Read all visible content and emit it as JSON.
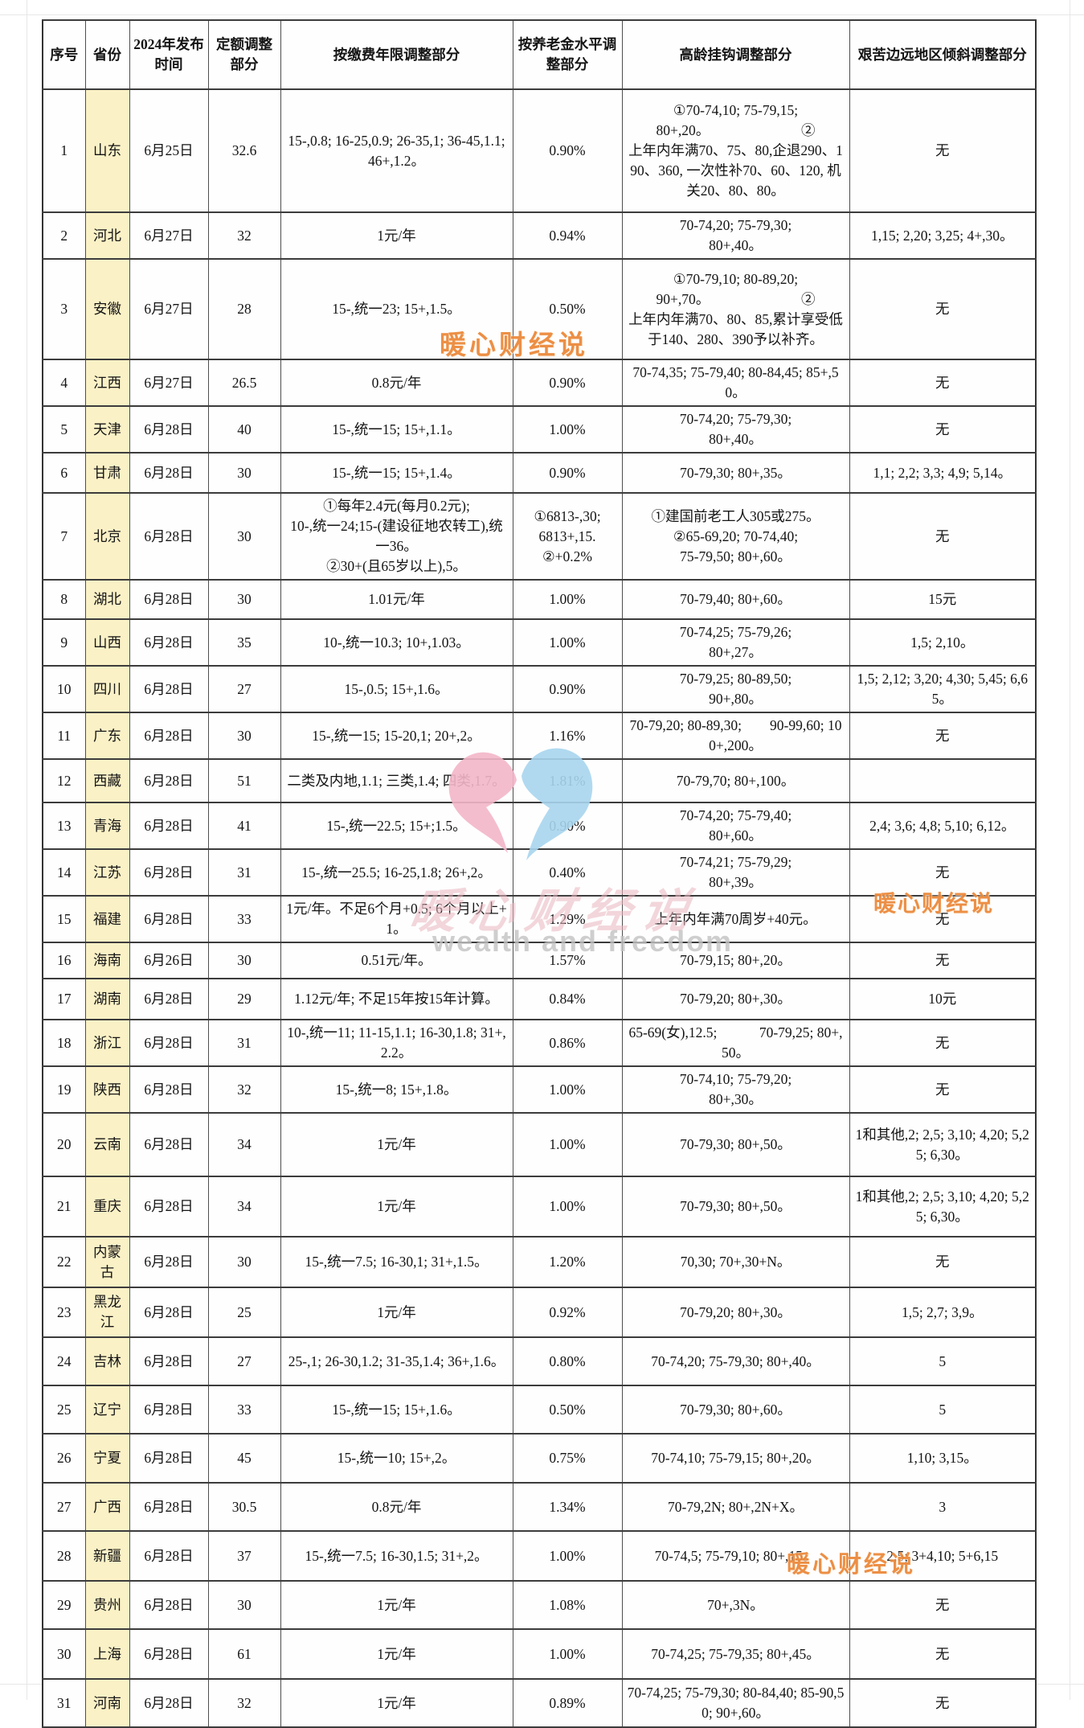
{
  "watermarks": {
    "brand": "暖心财经说",
    "tagline": "wealth and freedom"
  },
  "table": {
    "headers": [
      "序号",
      "省份",
      "2024年发布时间",
      "定额调整部分",
      "按缴费年限调整部分",
      "按养老金水平调整部分",
      "高龄挂钩调整部分",
      "艰苦边远地区倾斜调整部分"
    ],
    "rows": [
      {
        "no": "1",
        "province": "山东",
        "date": "6月25日",
        "fixed": "32.6",
        "years": "15-,0.8; 16-25,0.9;  26-35,1; 36-45,1.1; 46+,1.2。",
        "level": "0.90%",
        "elderly": "①70-74,10; 75-79,15;\n80+,20。　　　　　　　②\n上年内年满70、75、80,企退290、190、360, 一次性补70、60、120, 机关20、80、80。",
        "remote": "无"
      },
      {
        "no": "2",
        "province": "河北",
        "date": "6月27日",
        "fixed": "32",
        "years": "1元/年",
        "level": "0.94%",
        "elderly": "70-74,20; 75-79,30;\n80+,40。",
        "remote": "1,15; 2,20; 3,25; 4+,30。"
      },
      {
        "no": "3",
        "province": "安徽",
        "date": "6月27日",
        "fixed": "28",
        "years": "15-,统一23; 15+,1.5。",
        "level": "0.50%",
        "elderly": "①70-79,10; 80-89,20;\n90+,70。　　　　　　　②\n上年内年满70、80、85,累计享受低于140、280、390予以补齐。",
        "remote": "无"
      },
      {
        "no": "4",
        "province": "江西",
        "date": "6月27日",
        "fixed": "26.5",
        "years": "0.8元/年",
        "level": "0.90%",
        "elderly": "70-74,35; 75-79,40; 80-84,45; 85+,50。",
        "remote": "无"
      },
      {
        "no": "5",
        "province": "天津",
        "date": "6月28日",
        "fixed": "40",
        "years": "15-,统一15; 15+,1.1。",
        "level": "1.00%",
        "elderly": "70-74,20; 75-79,30;\n80+,40。",
        "remote": "无"
      },
      {
        "no": "6",
        "province": "甘肃",
        "date": "6月28日",
        "fixed": "30",
        "years": "15-,统一15; 15+,1.4。",
        "level": "0.90%",
        "elderly": "70-79,30; 80+,35。",
        "remote": "1,1; 2,2; 3,3; 4,9; 5,14。"
      },
      {
        "no": "7",
        "province": "北京",
        "date": "6月28日",
        "fixed": "30",
        "years": "①每年2.4元(每月0.2元);\n10-,统一24;15-(建设征地农转工),统一36。\n②30+(且65岁以上),5。",
        "level": "①6813-,30;\n6813+,15.\n②+0.2%",
        "elderly": "①建国前老工人305或275。\n②65-69,20; 70-74,40;\n75-79,50; 80+,60。",
        "remote": "无"
      },
      {
        "no": "8",
        "province": "湖北",
        "date": "6月28日",
        "fixed": "30",
        "years": "1.01元/年",
        "level": "1.00%",
        "elderly": "70-79,40; 80+,60。",
        "remote": "15元"
      },
      {
        "no": "9",
        "province": "山西",
        "date": "6月28日",
        "fixed": "35",
        "years": "10-,统一10.3; 10+,1.03。",
        "level": "1.00%",
        "elderly": "70-74,25; 75-79,26;\n80+,27。",
        "remote": "1,5; 2,10。"
      },
      {
        "no": "10",
        "province": "四川",
        "date": "6月28日",
        "fixed": "27",
        "years": "15-,0.5; 15+,1.6。",
        "level": "0.90%",
        "elderly": "70-79,25; 80-89,50;\n90+,80。",
        "remote": "1,5; 2,12; 3,20; 4,30; 5,45; 6,65。"
      },
      {
        "no": "11",
        "province": "广东",
        "date": "6月28日",
        "fixed": "30",
        "years": "15-,统一15; 15-20,1; 20+,2。",
        "level": "1.16%",
        "elderly": "70-79,20; 80-89,30;　　90-99,60; 100+,200。",
        "remote": "无"
      },
      {
        "no": "12",
        "province": "西藏",
        "date": "6月28日",
        "fixed": "51",
        "years": "二类及内地,1.1; 三类,1.4; 四类,1.7。",
        "level": "1.81%",
        "elderly": "70-79,70; 80+,100。",
        "remote": ""
      },
      {
        "no": "13",
        "province": "青海",
        "date": "6月28日",
        "fixed": "41",
        "years": "15-,统一22.5; 15+;1.5。",
        "level": "0.90%",
        "elderly": "70-74,20; 75-79,40;\n80+,60。",
        "remote": "2,4; 3,6; 4,8; 5,10; 6,12。"
      },
      {
        "no": "14",
        "province": "江苏",
        "date": "6月28日",
        "fixed": "31",
        "years": "15-,统一25.5; 16-25,1.8; 26+,2。",
        "level": "0.40%",
        "elderly": "70-74,21; 75-79,29;\n80+,39。",
        "remote": "无"
      },
      {
        "no": "15",
        "province": "福建",
        "date": "6月28日",
        "fixed": "33",
        "years": "1元/年。不足6个月+0.5; 6个月以上+1。",
        "level": "1.29%",
        "elderly": "上年内年满70周岁+40元。",
        "remote": "无"
      },
      {
        "no": "16",
        "province": "海南",
        "date": "6月26日",
        "fixed": "30",
        "years": "0.51元/年。",
        "level": "1.57%",
        "elderly": "70-79,15; 80+,20。",
        "remote": "无"
      },
      {
        "no": "17",
        "province": "湖南",
        "date": "6月28日",
        "fixed": "29",
        "years": "1.12元/年; 不足15年按15年计算。",
        "level": "0.84%",
        "elderly": "70-79,20; 80+,30。",
        "remote": "10元"
      },
      {
        "no": "18",
        "province": "浙江",
        "date": "6月28日",
        "fixed": "31",
        "years": "10-,统一11; 11-15,1.1; 16-30,1.8; 31+,2.2。",
        "level": "0.86%",
        "elderly": "65-69(女),12.5;　　　70-79,25; 80+,50。",
        "remote": "无"
      },
      {
        "no": "19",
        "province": "陕西",
        "date": "6月28日",
        "fixed": "32",
        "years": "15-,统一8; 15+,1.8。",
        "level": "1.00%",
        "elderly": "70-74,10; 75-79,20;\n80+,30。",
        "remote": "无"
      },
      {
        "no": "20",
        "province": "云南",
        "date": "6月28日",
        "fixed": "34",
        "years": "1元/年",
        "level": "1.00%",
        "elderly": "70-79,30; 80+,50。",
        "remote": "1和其他,2; 2,5; 3,10; 4,20; 5,25; 6,30。"
      },
      {
        "no": "21",
        "province": "重庆",
        "date": "6月28日",
        "fixed": "34",
        "years": "1元/年",
        "level": "1.00%",
        "elderly": "70-79,30; 80+,50。",
        "remote": "1和其他,2; 2,5; 3,10; 4,20; 5,25; 6,30。"
      },
      {
        "no": "22",
        "province": "内蒙古",
        "date": "6月28日",
        "fixed": "30",
        "years": "15-,统一7.5; 16-30,1; 31+,1.5。",
        "level": "1.20%",
        "elderly": "70,30; 70+,30+N。",
        "remote": "无"
      },
      {
        "no": "23",
        "province": "黑龙江",
        "date": "6月28日",
        "fixed": "25",
        "years": "1元/年",
        "level": "0.92%",
        "elderly": "70-79,20; 80+,30。",
        "remote": "1,5; 2,7; 3,9。"
      },
      {
        "no": "24",
        "province": "吉林",
        "date": "6月28日",
        "fixed": "27",
        "years": "25-,1; 26-30,1.2; 31-35,1.4; 36+,1.6。",
        "level": "0.80%",
        "elderly": "70-74,20; 75-79,30; 80+,40。",
        "remote": "5"
      },
      {
        "no": "25",
        "province": "辽宁",
        "date": "6月28日",
        "fixed": "33",
        "years": "15-,统一15; 15+,1.6。",
        "level": "0.50%",
        "elderly": "70-79,30; 80+,60。",
        "remote": "5"
      },
      {
        "no": "26",
        "province": "宁夏",
        "date": "6月28日",
        "fixed": "45",
        "years": "15-,统一10; 15+,2。",
        "level": "0.75%",
        "elderly": "70-74,10; 75-79,15; 80+,20。",
        "remote": "1,10; 3,15。"
      },
      {
        "no": "27",
        "province": "广西",
        "date": "6月28日",
        "fixed": "30.5",
        "years": "0.8元/年",
        "level": "1.34%",
        "elderly": "70-79,2N; 80+,2N+X。",
        "remote": "3"
      },
      {
        "no": "28",
        "province": "新疆",
        "date": "6月28日",
        "fixed": "37",
        "years": "15-,统一7.5; 16-30,1.5; 31+,2。",
        "level": "1.00%",
        "elderly": "70-74,5; 75-79,10; 80+,15。",
        "remote": "2,5; 3+4,10; 5+6,15"
      },
      {
        "no": "29",
        "province": "贵州",
        "date": "6月28日",
        "fixed": "30",
        "years": "1元/年",
        "level": "1.08%",
        "elderly": "70+,3N。",
        "remote": "无"
      },
      {
        "no": "30",
        "province": "上海",
        "date": "6月28日",
        "fixed": "61",
        "years": "1元/年",
        "level": "1.00%",
        "elderly": "70-74,25; 75-79,35; 80+,45。",
        "remote": "无"
      },
      {
        "no": "31",
        "province": "河南",
        "date": "6月28日",
        "fixed": "32",
        "years": "1元/年",
        "level": "0.89%",
        "elderly": "70-74,25; 75-79,30; 80-84,40; 85-90,50; 90+,60。",
        "remote": "无"
      }
    ]
  }
}
